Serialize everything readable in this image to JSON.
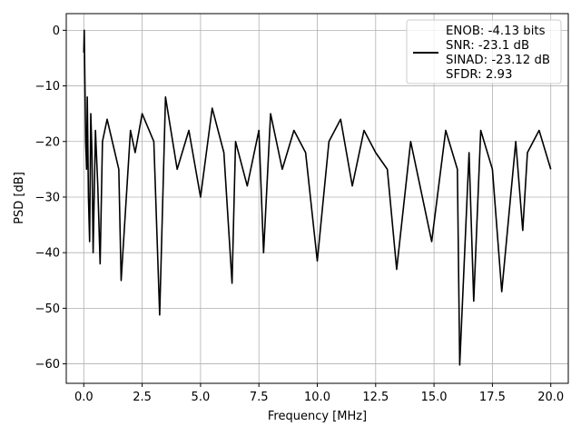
{
  "chart_data": {
    "type": "line",
    "title": "",
    "xlabel": "Frequency [MHz]",
    "ylabel": "PSD [dB]",
    "xlim": [
      -0.75,
      20.75
    ],
    "ylim": [
      -63.5,
      3.0
    ],
    "xticks": [
      0.0,
      2.5,
      5.0,
      7.5,
      10.0,
      12.5,
      15.0,
      17.5,
      20.0
    ],
    "xtick_labels": [
      "0.0",
      "2.5",
      "5.0",
      "7.5",
      "10.0",
      "12.5",
      "15.0",
      "17.5",
      "20.0"
    ],
    "yticks": [
      0,
      -10,
      -20,
      -30,
      -40,
      -50,
      -60
    ],
    "ytick_labels": [
      "0",
      "−10",
      "−20",
      "−30",
      "−40",
      "−50",
      "−60"
    ],
    "grid": true,
    "line_color": "#000000",
    "legend": {
      "placement": "top-right",
      "lines": [
        "ENOB: -4.13 bits",
        "SNR: -23.1 dB",
        "SINAD: -23.12 dB",
        "SFDR: 2.93"
      ]
    },
    "series": [
      {
        "x": [
          0.0,
          0.02,
          0.05,
          0.08,
          0.12,
          0.15,
          0.2,
          0.25,
          0.3,
          0.35,
          0.4,
          0.5,
          0.6,
          0.7,
          0.8,
          1.0,
          1.5,
          1.6,
          2.0,
          2.2,
          2.5,
          3.0,
          3.25,
          3.5,
          4.0,
          4.5,
          5.0,
          5.5,
          6.0,
          6.35,
          6.5,
          7.0,
          7.5,
          7.7,
          8.0,
          8.5,
          9.0,
          9.5,
          10.0,
          10.5,
          11.0,
          11.5,
          12.0,
          12.5,
          13.0,
          13.4,
          14.0,
          14.5,
          14.9,
          15.5,
          16.0,
          16.1,
          16.5,
          16.7,
          17.0,
          17.5,
          17.9,
          18.5,
          18.8,
          19.0,
          19.5,
          20.0
        ],
        "y": [
          -4,
          0,
          -10,
          -20,
          -25,
          -12,
          -30,
          -38,
          -15,
          -22,
          -40,
          -18,
          -28,
          -42,
          -20,
          -16,
          -25,
          -45,
          -18,
          -22,
          -15,
          -20,
          -51.2,
          -12,
          -25,
          -18,
          -30,
          -14,
          -22,
          -45.5,
          -20,
          -28,
          -18,
          -40,
          -15,
          -25,
          -18,
          -22,
          -41.5,
          -20,
          -16,
          -28,
          -18,
          -22,
          -25,
          -43,
          -20,
          -30,
          -38,
          -18,
          -25,
          -60.2,
          -22,
          -48.7,
          -18,
          -25,
          -47,
          -20,
          -36,
          -22,
          -18,
          -25
        ]
      }
    ]
  }
}
